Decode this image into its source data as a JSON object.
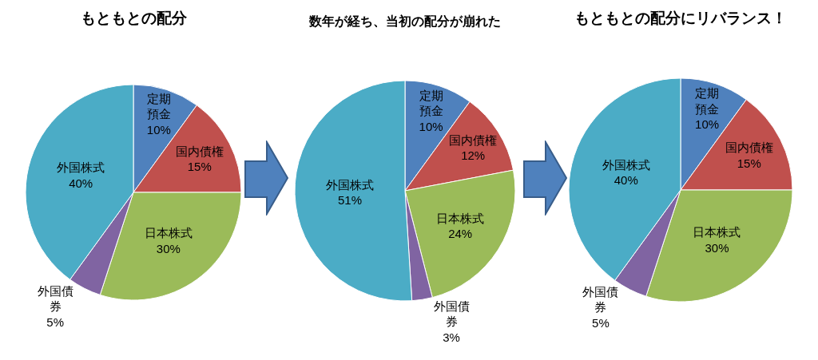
{
  "chart_data": [
    {
      "type": "pie",
      "title": "もともとの配分",
      "categories": [
        "定期預金",
        "国内債権",
        "日本株式",
        "外国債券",
        "外国株式"
      ],
      "values": [
        10,
        15,
        30,
        5,
        40
      ],
      "value_labels": [
        "10%",
        "15%",
        "30%",
        "5%",
        "40%"
      ],
      "colors": [
        "#4f81bd",
        "#c0504d",
        "#9bbb59",
        "#8064a2",
        "#4bacc6"
      ]
    },
    {
      "type": "pie",
      "title": "数年が経ち、当初の配分が崩れた",
      "categories": [
        "定期預金",
        "国内債権",
        "日本株式",
        "外国債券",
        "外国株式"
      ],
      "values": [
        10,
        12,
        24,
        3,
        51
      ],
      "value_labels": [
        "10%",
        "12%",
        "24%",
        "3%",
        "51%"
      ],
      "colors": [
        "#4f81bd",
        "#c0504d",
        "#9bbb59",
        "#8064a2",
        "#4bacc6"
      ]
    },
    {
      "type": "pie",
      "title": "もともとの配分にリバランス！",
      "categories": [
        "定期預金",
        "国内債権",
        "日本株式",
        "外国債券",
        "外国株式"
      ],
      "values": [
        10,
        15,
        30,
        5,
        40
      ],
      "value_labels": [
        "10%",
        "15%",
        "30%",
        "5%",
        "40%"
      ],
      "colors": [
        "#4f81bd",
        "#c0504d",
        "#9bbb59",
        "#8064a2",
        "#4bacc6"
      ]
    }
  ]
}
